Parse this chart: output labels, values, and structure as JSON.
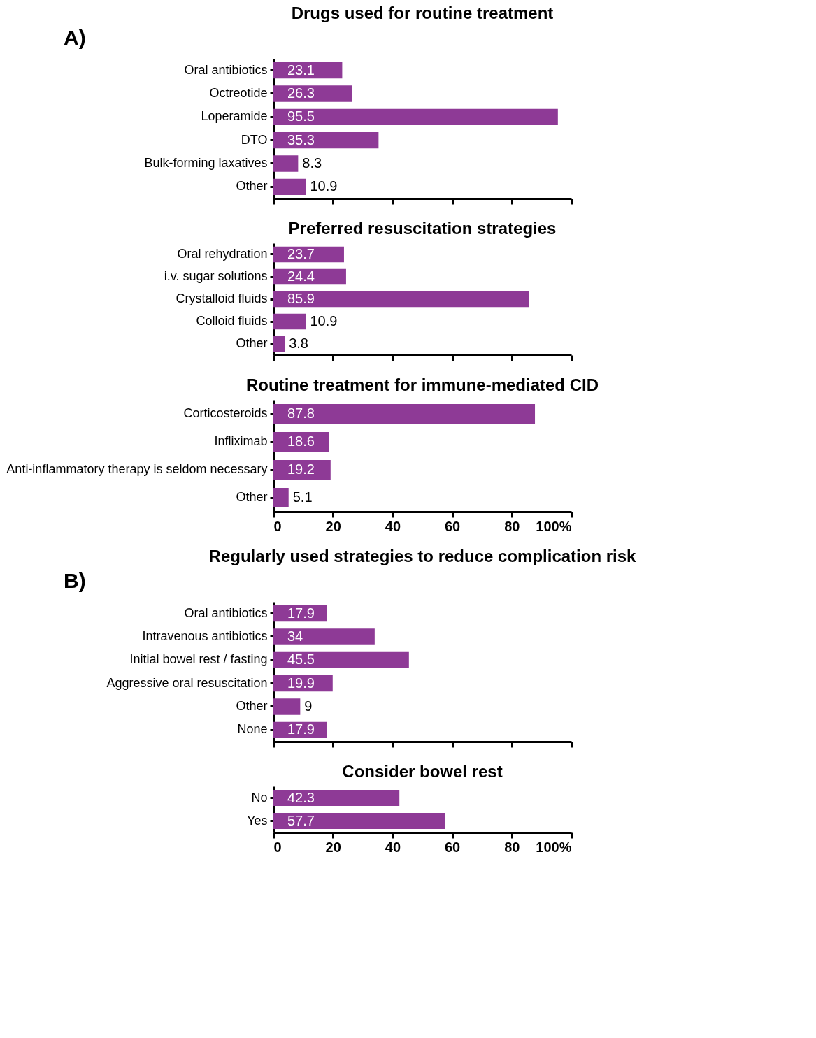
{
  "chart_data": [
    {
      "type": "bar",
      "orientation": "horizontal",
      "title": "Drugs used for routine treatment",
      "annotations": [
        "A)"
      ],
      "categories": [
        "Oral antibiotics",
        "Octreotide",
        "Loperamide",
        "DTO",
        "Bulk-forming laxatives",
        "Other"
      ],
      "values": [
        23.1,
        26.3,
        95.5,
        35.3,
        8.3,
        10.9
      ],
      "color": "#8e3a96",
      "data_labels": true,
      "xlim": [
        0,
        100
      ],
      "xticks": [
        0,
        20,
        40,
        60,
        80,
        100
      ],
      "tick_labels": "y",
      "grid": false
    },
    {
      "type": "bar",
      "orientation": "horizontal",
      "title": "Preferred resuscitation strategies",
      "categories": [
        "Oral rehydration",
        "i.v. sugar solutions",
        "Crystalloid fluids",
        "Colloid fluids",
        "Other"
      ],
      "values": [
        23.7,
        24.4,
        85.9,
        10.9,
        3.8
      ],
      "color": "#8e3a96",
      "data_labels": true,
      "xlim": [
        0,
        100
      ],
      "xticks": [
        0,
        20,
        40,
        60,
        80,
        100
      ],
      "tick_labels": "y",
      "grid": false
    },
    {
      "type": "bar",
      "orientation": "horizontal",
      "title": "Routine treatment for immune-mediated CID",
      "categories": [
        "Corticosteroids",
        "Infliximab",
        "Anti-inflammatory therapy is seldom necessary",
        "Other"
      ],
      "values": [
        87.8,
        18.6,
        19.2,
        5.1
      ],
      "color": "#8e3a96",
      "data_labels": true,
      "xlim": [
        0,
        100
      ],
      "xticks": [
        0,
        20,
        40,
        60,
        80,
        {
          "value": 100,
          "label": "100%"
        }
      ],
      "grid": false
    },
    {
      "type": "bar",
      "orientation": "horizontal",
      "title": "Regularly used strategies to reduce complication risk",
      "annotations": [
        "B)"
      ],
      "categories": [
        "Oral antibiotics",
        "Intravenous antibiotics",
        "Initial bowel rest / fasting",
        "Aggressive oral resuscitation",
        "Other",
        "None"
      ],
      "values": [
        17.9,
        34,
        45.5,
        19.9,
        9,
        17.9
      ],
      "color": "#8e3a96",
      "data_labels": true,
      "xlim": [
        0,
        100
      ],
      "xticks": [
        0,
        20,
        40,
        60,
        80,
        100
      ],
      "tick_labels": "y",
      "grid": false
    },
    {
      "type": "bar",
      "orientation": "horizontal",
      "title": "Consider bowel rest",
      "categories": [
        "No",
        "Yes"
      ],
      "values": [
        42.3,
        57.7
      ],
      "color": "#8e3a96",
      "data_labels": true,
      "xlim": [
        0,
        100
      ],
      "xticks": [
        0,
        20,
        40,
        60,
        80,
        {
          "value": 100,
          "label": "100%"
        }
      ],
      "grid": false
    }
  ]
}
